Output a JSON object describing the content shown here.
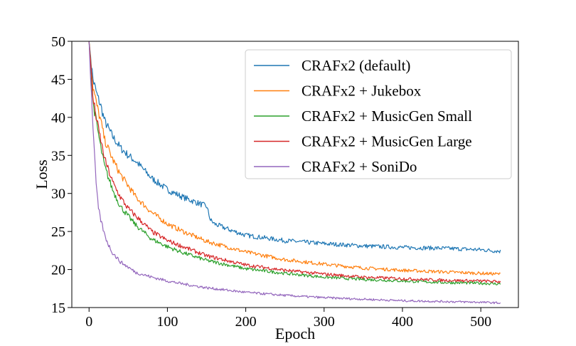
{
  "chart_data": {
    "type": "line",
    "title": "",
    "xlabel": "Epoch",
    "ylabel": "Loss",
    "xlim": [
      -22,
      548
    ],
    "ylim": [
      15,
      50
    ],
    "xticks": [
      0,
      100,
      200,
      300,
      400,
      500
    ],
    "yticks": [
      15,
      20,
      25,
      30,
      35,
      40,
      45,
      50
    ],
    "grid": false,
    "legend_position": "top-right",
    "series": [
      {
        "name": "CRAFx2 (default)",
        "color": "#1f77b4",
        "x": [
          0,
          5,
          10,
          15,
          20,
          30,
          40,
          50,
          60,
          80,
          100,
          120,
          140,
          150,
          155,
          160,
          180,
          200,
          250,
          300,
          350,
          400,
          450,
          500,
          525
        ],
        "y": [
          50,
          45,
          43,
          41.5,
          39.5,
          37.5,
          36,
          35,
          34.2,
          32,
          30.5,
          29.5,
          28.7,
          28.3,
          26.5,
          26,
          25.2,
          24.5,
          23.8,
          23.4,
          23.1,
          22.9,
          22.8,
          22.6,
          22.4
        ]
      },
      {
        "name": "CRAFx2 + Jukebox",
        "color": "#ff7f0e",
        "x": [
          0,
          5,
          10,
          15,
          20,
          30,
          40,
          50,
          60,
          80,
          100,
          120,
          150,
          200,
          250,
          300,
          350,
          400,
          450,
          500,
          525
        ],
        "y": [
          50,
          44,
          41.5,
          39.5,
          37,
          34.5,
          32.5,
          31,
          29.5,
          27.5,
          26,
          25,
          23.7,
          22.3,
          21.3,
          20.7,
          20.2,
          19.9,
          19.7,
          19.5,
          19.4
        ]
      },
      {
        "name": "CRAFx2 + MusicGen Small",
        "color": "#2ca02c",
        "x": [
          0,
          5,
          10,
          15,
          20,
          30,
          40,
          50,
          60,
          80,
          100,
          120,
          150,
          200,
          250,
          300,
          350,
          400,
          450,
          500,
          525
        ],
        "y": [
          50,
          42,
          39,
          36,
          33.5,
          30.5,
          28.3,
          27,
          25.8,
          24,
          23,
          22.2,
          21.2,
          20.1,
          19.5,
          19,
          18.7,
          18.5,
          18.3,
          18.2,
          18.1
        ]
      },
      {
        "name": "CRAFx2 + MusicGen Large",
        "color": "#d62728",
        "x": [
          0,
          5,
          10,
          15,
          20,
          30,
          40,
          50,
          60,
          80,
          100,
          120,
          150,
          200,
          250,
          300,
          350,
          400,
          450,
          500,
          525
        ],
        "y": [
          50,
          42.5,
          39.5,
          37,
          34.5,
          31.5,
          29.5,
          28,
          27,
          25,
          23.8,
          23,
          21.8,
          20.6,
          19.9,
          19.4,
          19,
          18.8,
          18.6,
          18.5,
          18.4
        ]
      },
      {
        "name": "CRAFx2 + SoniDo",
        "color": "#9467bd",
        "x": [
          0,
          2,
          5,
          8,
          10,
          12,
          15,
          20,
          25,
          30,
          40,
          50,
          60,
          80,
          100,
          120,
          150,
          200,
          250,
          300,
          350,
          400,
          450,
          500,
          525
        ],
        "y": [
          50,
          45,
          39,
          33,
          30,
          28,
          26.5,
          24.5,
          23.2,
          22.2,
          21,
          20.3,
          19.6,
          19,
          18.5,
          18.1,
          17.6,
          17,
          16.6,
          16.3,
          16.1,
          15.9,
          15.8,
          15.7,
          15.6
        ]
      }
    ]
  }
}
